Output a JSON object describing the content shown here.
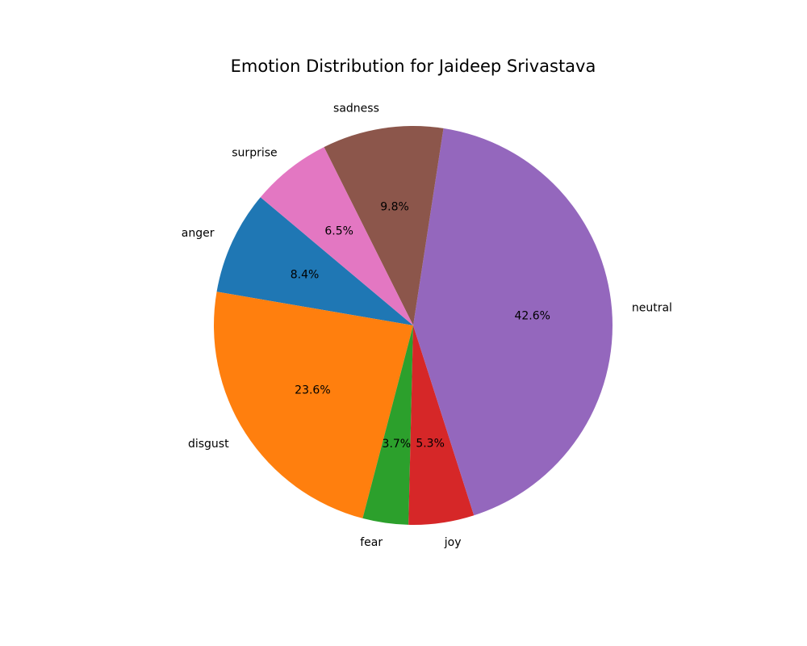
{
  "chart_data": {
    "type": "pie",
    "title": "Emotion Distribution for Jaideep Srivastava",
    "start_angle_deg": 140,
    "direction": "counterclockwise",
    "slices": [
      {
        "label": "anger",
        "value": 8.4,
        "pct_text": "8.4%",
        "color": "#1f77b4"
      },
      {
        "label": "disgust",
        "value": 23.6,
        "pct_text": "23.6%",
        "color": "#ff7f0e"
      },
      {
        "label": "fear",
        "value": 3.7,
        "pct_text": "3.7%",
        "color": "#2ca02c"
      },
      {
        "label": "joy",
        "value": 5.3,
        "pct_text": "5.3%",
        "color": "#d62728"
      },
      {
        "label": "neutral",
        "value": 42.6,
        "pct_text": "42.6%",
        "color": "#9467bd"
      },
      {
        "label": "sadness",
        "value": 9.8,
        "pct_text": "9.8%",
        "color": "#8c564b"
      },
      {
        "label": "surprise",
        "value": 6.5,
        "pct_text": "6.5%",
        "color": "#e377c2"
      }
    ]
  }
}
